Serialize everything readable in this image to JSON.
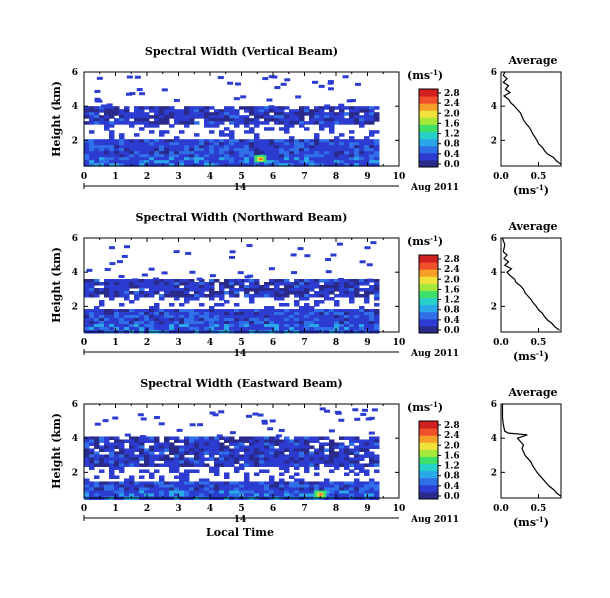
{
  "colorbar": {
    "unit_label": "(ms",
    "unit_sup": "-1",
    "unit_close": ")",
    "ticks": [
      "2.8",
      "2.4",
      "2.0",
      "1.6",
      "1.2",
      "0.8",
      "0.4",
      "0.0"
    ],
    "colors": [
      "#2a2a8a",
      "#2c3cd0",
      "#2f6fe8",
      "#2aa8e8",
      "#27d0c8",
      "#3ee06a",
      "#a6e83a",
      "#f0e23a",
      "#f6a02a",
      "#f0502a",
      "#d02020"
    ]
  },
  "chart_data": [
    {
      "type": "heatmap",
      "title": "Spectral Width (Vertical Beam)",
      "ylabel": "Height (km)",
      "xlabel": "",
      "x_ticks": [
        "0",
        "1",
        "2",
        "3",
        "4",
        "5",
        "6",
        "7",
        "8",
        "9",
        "10"
      ],
      "y_ticks": [
        "6",
        "4",
        "2"
      ],
      "xlim": [
        0,
        10
      ],
      "ylim": [
        0.5,
        6
      ],
      "date_day": "14",
      "date_label": "Aug 2011",
      "top_altitude_km": 4.0,
      "low_band_km": [
        2.1,
        3.0
      ],
      "bright_spot": {
        "x": 5.6,
        "y": 0.9
      },
      "data_end_hour": 9.3,
      "average": {
        "title": "Average",
        "xlabel": "(ms",
        "xlabel_sup": "-1",
        "xlabel_close": ")",
        "x_ticks": [
          "0.0",
          "0.5"
        ],
        "y_ticks": [
          "6",
          "4",
          "2"
        ],
        "xlim": [
          0,
          0.8
        ],
        "ylim": [
          0.5,
          6
        ],
        "profile": [
          [
            0.8,
            0.6
          ],
          [
            0.74,
            0.8
          ],
          [
            0.7,
            1.0
          ],
          [
            0.62,
            1.2
          ],
          [
            0.58,
            1.4
          ],
          [
            0.55,
            1.6
          ],
          [
            0.5,
            1.8
          ],
          [
            0.48,
            2.0
          ],
          [
            0.45,
            2.2
          ],
          [
            0.42,
            2.4
          ],
          [
            0.4,
            2.6
          ],
          [
            0.37,
            2.8
          ],
          [
            0.33,
            3.0
          ],
          [
            0.3,
            3.2
          ],
          [
            0.28,
            3.4
          ],
          [
            0.26,
            3.6
          ],
          [
            0.22,
            3.8
          ],
          [
            0.18,
            4.0
          ],
          [
            0.13,
            4.2
          ],
          [
            0.1,
            4.4
          ],
          [
            0.04,
            4.6
          ],
          [
            0.12,
            4.8
          ],
          [
            0.06,
            5.0
          ],
          [
            0.1,
            5.2
          ],
          [
            0.03,
            5.4
          ],
          [
            0.08,
            5.6
          ],
          [
            0.03,
            5.8
          ],
          [
            0.05,
            6.0
          ]
        ]
      }
    },
    {
      "type": "heatmap",
      "title": "Spectral Width (Northward Beam)",
      "ylabel": "Height (km)",
      "xlabel": "",
      "x_ticks": [
        "0",
        "1",
        "2",
        "3",
        "4",
        "5",
        "6",
        "7",
        "8",
        "9",
        "10"
      ],
      "y_ticks": [
        "6",
        "4",
        "2"
      ],
      "xlim": [
        0,
        10
      ],
      "ylim": [
        0.5,
        6
      ],
      "date_day": "14",
      "date_label": "Aug 2011",
      "top_altitude_km": 3.6,
      "low_band_km": [
        1.9,
        2.6
      ],
      "bright_spot": null,
      "data_end_hour": 9.3,
      "average": {
        "title": "Average",
        "xlabel": "(ms",
        "xlabel_sup": "-1",
        "xlabel_close": ")",
        "x_ticks": [
          "0.0",
          "0.5"
        ],
        "y_ticks": [
          "6",
          "4",
          "2"
        ],
        "xlim": [
          0,
          0.8
        ],
        "ylim": [
          0.5,
          6
        ],
        "profile": [
          [
            0.78,
            0.6
          ],
          [
            0.72,
            0.8
          ],
          [
            0.68,
            1.0
          ],
          [
            0.62,
            1.2
          ],
          [
            0.58,
            1.4
          ],
          [
            0.55,
            1.6
          ],
          [
            0.5,
            1.8
          ],
          [
            0.47,
            2.0
          ],
          [
            0.43,
            2.2
          ],
          [
            0.4,
            2.4
          ],
          [
            0.36,
            2.6
          ],
          [
            0.32,
            2.8
          ],
          [
            0.3,
            3.0
          ],
          [
            0.26,
            3.2
          ],
          [
            0.2,
            3.4
          ],
          [
            0.18,
            3.6
          ],
          [
            0.12,
            3.8
          ],
          [
            0.08,
            4.0
          ],
          [
            0.14,
            4.2
          ],
          [
            0.05,
            4.4
          ],
          [
            0.1,
            4.6
          ],
          [
            0.04,
            4.8
          ],
          [
            0.08,
            5.0
          ],
          [
            0.03,
            5.2
          ],
          [
            0.05,
            5.6
          ],
          [
            0.02,
            6.0
          ]
        ]
      }
    },
    {
      "type": "heatmap",
      "title": "Spectral Width (Eastward Beam)",
      "ylabel": "Height (km)",
      "xlabel": "Local Time",
      "x_ticks": [
        "0",
        "1",
        "2",
        "3",
        "4",
        "5",
        "6",
        "7",
        "8",
        "9",
        "10"
      ],
      "y_ticks": [
        "6",
        "4",
        "2"
      ],
      "xlim": [
        0,
        10
      ],
      "ylim": [
        0.5,
        6
      ],
      "date_day": "14",
      "date_label": "Aug 2011",
      "top_altitude_km": 4.1,
      "low_band_km": [
        1.6,
        2.4
      ],
      "bright_spot": {
        "x": 7.5,
        "y": 0.7
      },
      "data_end_hour": 9.3,
      "average": {
        "title": "Average",
        "xlabel": "(ms",
        "xlabel_sup": "-1",
        "xlabel_close": ")",
        "x_ticks": [
          "0.0",
          "0.5"
        ],
        "y_ticks": [
          "6",
          "4",
          "2"
        ],
        "xlim": [
          0,
          0.8
        ],
        "ylim": [
          0.5,
          6
        ],
        "profile": [
          [
            0.8,
            0.6
          ],
          [
            0.74,
            0.8
          ],
          [
            0.7,
            1.0
          ],
          [
            0.64,
            1.2
          ],
          [
            0.6,
            1.4
          ],
          [
            0.56,
            1.6
          ],
          [
            0.52,
            1.8
          ],
          [
            0.48,
            2.0
          ],
          [
            0.45,
            2.2
          ],
          [
            0.42,
            2.4
          ],
          [
            0.4,
            2.6
          ],
          [
            0.36,
            2.8
          ],
          [
            0.32,
            3.0
          ],
          [
            0.3,
            3.2
          ],
          [
            0.28,
            3.4
          ],
          [
            0.3,
            3.6
          ],
          [
            0.26,
            3.8
          ],
          [
            0.22,
            4.0
          ],
          [
            0.35,
            4.2
          ],
          [
            0.1,
            4.3
          ],
          [
            0.05,
            4.4
          ],
          [
            0.04,
            4.6
          ],
          [
            0.03,
            4.8
          ],
          [
            0.02,
            5.2
          ],
          [
            0.02,
            6.0
          ]
        ]
      }
    }
  ]
}
